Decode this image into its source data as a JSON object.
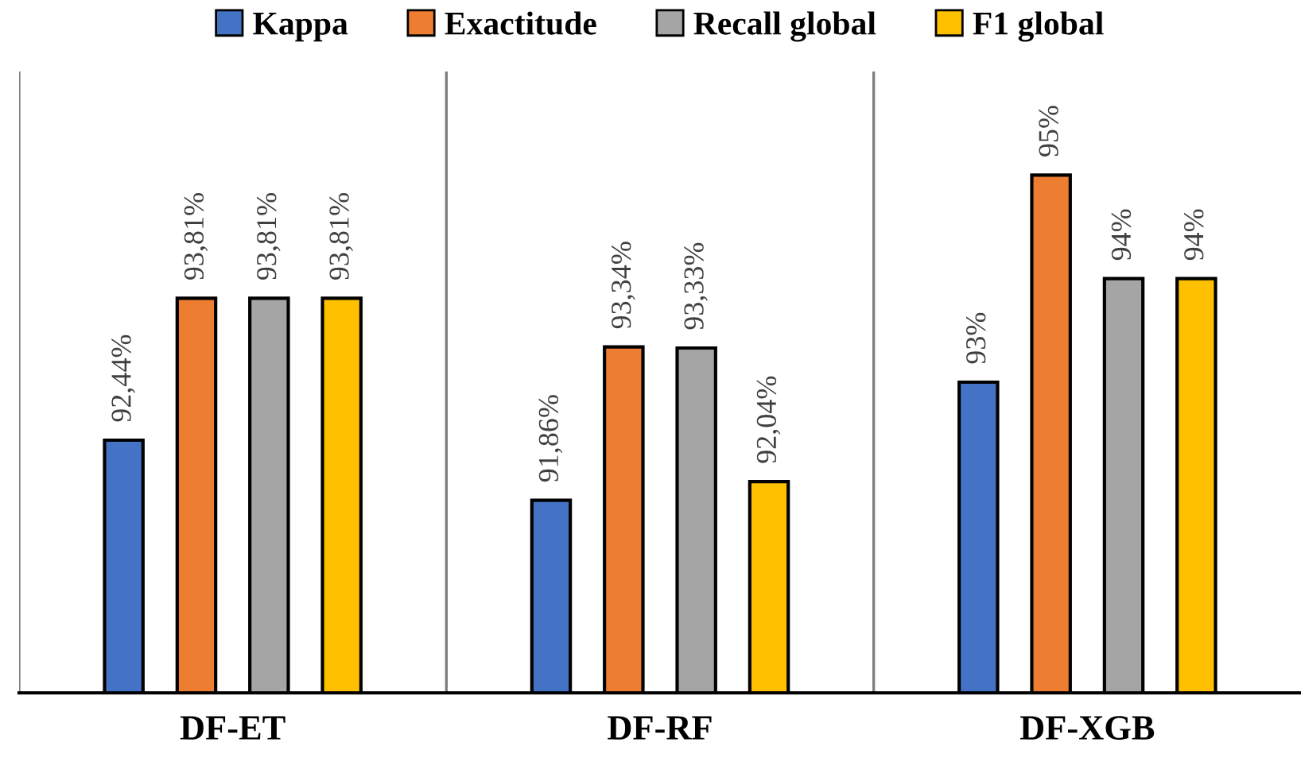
{
  "chart_data": {
    "type": "bar",
    "categories": [
      "DF-ET",
      "DF-RF",
      "DF-XGB"
    ],
    "series": [
      {
        "name": "Kappa",
        "color": "#4472c4",
        "values": [
          92.44,
          91.86,
          93
        ],
        "value_labels": [
          "92,44%",
          "91,86%",
          "93%"
        ]
      },
      {
        "name": "Exactitude",
        "color": "#ed7d31",
        "values": [
          93.81,
          93.34,
          95
        ],
        "value_labels": [
          "93,81%",
          "93,34%",
          "95%"
        ]
      },
      {
        "name": "Recall global",
        "color": "#a5a5a5",
        "values": [
          93.81,
          93.33,
          94
        ],
        "value_labels": [
          "93,81%",
          "93,33%",
          "94%"
        ]
      },
      {
        "name": "F1 global",
        "color": "#ffc000",
        "values": [
          93.81,
          92.04,
          94
        ],
        "value_labels": [
          "93,81%",
          "92,04%",
          "94%"
        ]
      }
    ],
    "ylim": [
      90,
      96
    ],
    "tick_labels": "x",
    "grid": "x",
    "legend": "top"
  }
}
